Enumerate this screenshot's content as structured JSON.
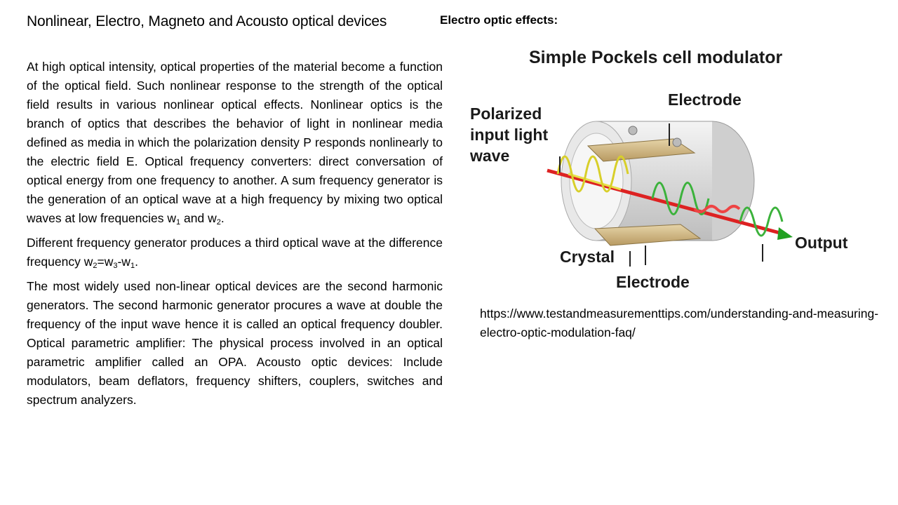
{
  "slide": {
    "title": "Nonlinear, Electro, Magneto and Acousto optical devices",
    "right_heading": "Electro optic effects:",
    "para1": {
      "text": "At high optical intensity, optical properties of the material become a function of the optical field. Such nonlinear response to the strength of the optical field results in various nonlinear optical effects. Nonlinear optics is the branch of optics that describes the behavior of light in nonlinear media defined as media in which the polarization density P responds nonlinearly to the electric field E. Optical frequency converters: direct conversation of optical energy from one frequency to another.  A sum frequency generator is the generation of an optical wave at a high frequency by mixing two optical waves at low frequencies  w",
      "sub1": "1",
      "mid": " and w",
      "sub2": "2",
      "end": "."
    },
    "para2": {
      "text": "Different frequency generator produces a third optical wave at the difference frequency  w",
      "sub_a": "2",
      "eq": "=w",
      "sub_b": "3",
      "minus": "-w",
      "sub_c": "1",
      "end": "."
    },
    "para3": "The most widely used non-linear optical devices are the second harmonic generators.  The second harmonic generator procures a wave at double the frequency of the input wave hence it is called an optical frequency doubler. Optical parametric amplifier: The physical process involved in an optical parametric amplifier called an OPA. Acousto optic devices: Include modulators, beam deflators, frequency shifters, couplers, switches and spectrum analyzers.",
    "figure": {
      "title": "Simple Pockels cell modulator",
      "label_input_1": "Polarized",
      "label_input_2": "input light",
      "label_input_3": "wave",
      "label_electrode_top": "Electrode",
      "label_crystal": "Crystal",
      "label_electrode_bottom": "Electrode",
      "label_output": "Output"
    },
    "source_url": "https://www.testandmeasurementtips.com/understanding-and-measuring-electro-optic-modulation-faq/"
  }
}
